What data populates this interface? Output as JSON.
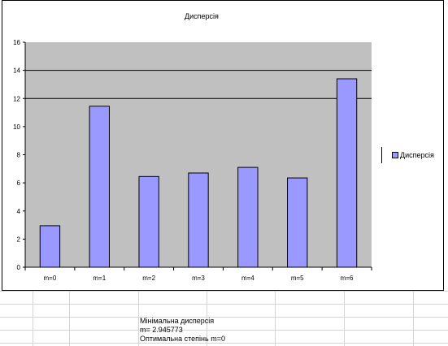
{
  "chart_data": {
    "type": "bar",
    "title": "Дисперсія",
    "categories": [
      "m=0",
      "m=1",
      "m=2",
      "m=3",
      "m=4",
      "m=5",
      "m=6"
    ],
    "series": [
      {
        "name": "Дисперсія",
        "values": [
          2.95,
          11.45,
          6.45,
          6.7,
          7.1,
          6.35,
          13.4
        ]
      }
    ],
    "ylim": [
      0,
      16
    ],
    "yticks": [
      0,
      2,
      4,
      6,
      8,
      10,
      12,
      14,
      16
    ],
    "ytick_labels": [
      "0",
      "2",
      "4",
      "6",
      "8",
      "10",
      "12",
      "14",
      "16"
    ],
    "plot_background": "#c0c0c0",
    "bar_color": "#9999ff",
    "gridlines": [
      12,
      14
    ],
    "legend_position": "right"
  },
  "sheet": {
    "lines": [
      "Мінімальна дисперсія",
      "m=          2.945773",
      "Оптимальна степінь m=0"
    ]
  }
}
